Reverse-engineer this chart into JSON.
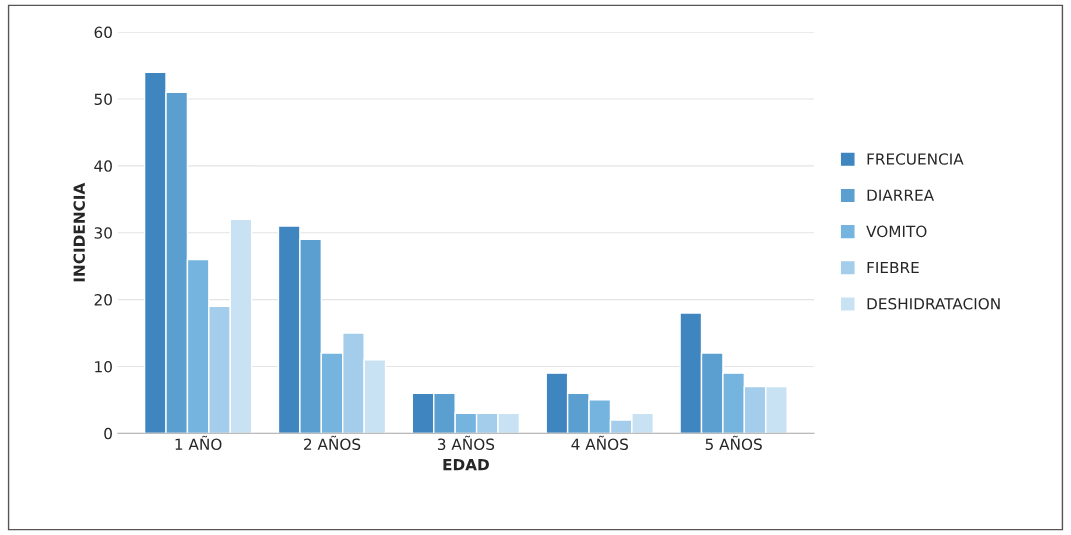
{
  "chart_data": {
    "type": "bar",
    "xlabel": "EDAD",
    "ylabel": "INCIDENCIA",
    "categories": [
      "1 AÑO",
      "2 AÑOS",
      "3 AÑOS",
      "4 AÑOS",
      "5 AÑOS"
    ],
    "series": [
      {
        "name": "FRECUENCIA",
        "color": "#3f86c0",
        "values": [
          54,
          31,
          6,
          9,
          18
        ]
      },
      {
        "name": "DIARREA",
        "color": "#5a9fd0",
        "values": [
          51,
          29,
          6,
          6,
          12
        ]
      },
      {
        "name": "VOMITO",
        "color": "#76b4e0",
        "values": [
          26,
          12,
          3,
          5,
          9
        ]
      },
      {
        "name": "FIEBRE",
        "color": "#a3cdea",
        "values": [
          19,
          15,
          3,
          2,
          7
        ]
      },
      {
        "name": "DESHIDRATACION",
        "color": "#c8e2f3",
        "values": [
          32,
          11,
          3,
          3,
          7
        ]
      }
    ],
    "ylim": [
      0,
      60
    ],
    "yticks": [
      0,
      10,
      20,
      30,
      40,
      50,
      60
    ],
    "grid": "y",
    "legend": "right"
  }
}
